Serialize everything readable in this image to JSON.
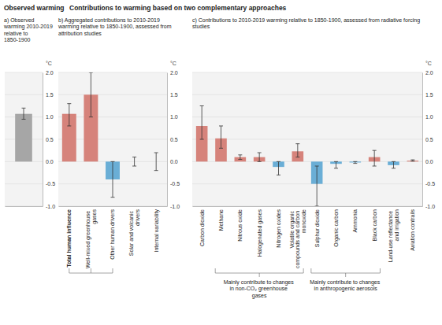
{
  "chart_data": [
    {
      "type": "bar",
      "title": "Observed warming",
      "subtitle": "a) Observed warming 2010-2019 relative to 1850-1900",
      "ylabel": "°C",
      "categories": [
        null
      ],
      "values": [
        1.07
      ],
      "error_low": [
        0.95
      ],
      "error_high": [
        1.2
      ],
      "colors": [
        "#a6a6a6"
      ],
      "ylim": [
        -1,
        2
      ],
      "yticks": [
        {
          "value": -1,
          "label": "-1.0"
        },
        {
          "value": -0.5,
          "label": "-0.5"
        },
        {
          "value": 0,
          "label": "0.0"
        },
        {
          "value": 0.5,
          "label": "0.5"
        },
        {
          "value": 1,
          "label": "1.0"
        },
        {
          "value": 1.5,
          "label": "1.5"
        },
        {
          "value": 2,
          "label": "2.0"
        }
      ],
      "grid": true
    },
    {
      "type": "bar",
      "title": "Contributions to warming based on two complementary approaches",
      "subtitle": "b) Aggregated contributions to 2010-2019 warming relative to 1850-1900, assessed from attribution studies",
      "ylabel": "°C",
      "categories": [
        "Total human influence",
        "Well-mixed greenhouse gases",
        "Other human drivers",
        "Solar and volcanic drivers",
        "Internal variability"
      ],
      "values": [
        1.07,
        1.5,
        -0.4,
        0.0,
        0.0
      ],
      "error_low": [
        0.8,
        1.0,
        -0.8,
        -0.1,
        -0.2
      ],
      "error_high": [
        1.3,
        2.0,
        0.0,
        0.1,
        0.2
      ],
      "colors": [
        "#d6837b",
        "#d6837b",
        "#6aaed6",
        "#d6837b",
        "#d6837b"
      ],
      "ylim": [
        -1,
        2
      ],
      "yticks": [
        {
          "value": -1,
          "label": "-1.0"
        },
        {
          "value": -0.5,
          "label": "-0.5"
        },
        {
          "value": 0,
          "label": "0.0"
        },
        {
          "value": 0.5,
          "label": "0.5"
        },
        {
          "value": 1,
          "label": "1.0"
        },
        {
          "value": 1.5,
          "label": "1.5"
        },
        {
          "value": 2,
          "label": "2.0"
        }
      ],
      "grid": true
    },
    {
      "type": "bar",
      "subtitle": "c) Contributions to 2010-2019 warming relative to 1850-1900, assessed from radiative forcing studies",
      "ylabel": "°C",
      "categories": [
        "Carbon dioxide",
        "Methane",
        "Nitrous oxide",
        "Halogenated gases",
        "Nitrogen oxides",
        "Volatile organic compounds and carbon monoxide",
        "Sulphur dioxide",
        "Organic carbon",
        "Ammonia",
        "Black carbon",
        "Land-use reflectance and irrigation",
        "Aviation contrails"
      ],
      "values": [
        0.8,
        0.52,
        0.1,
        0.1,
        -0.12,
        0.23,
        -0.5,
        -0.05,
        -0.02,
        0.1,
        -0.08,
        0.02
      ],
      "error_low": [
        0.5,
        0.3,
        0.05,
        0.0,
        -0.3,
        0.1,
        -1.0,
        -0.15,
        -0.04,
        -0.1,
        -0.15,
        0.01
      ],
      "error_high": [
        1.25,
        0.8,
        0.15,
        0.2,
        0.0,
        0.4,
        -0.1,
        0.0,
        0.0,
        0.25,
        0.0,
        0.04
      ],
      "colors": [
        "#d6837b",
        "#d6837b",
        "#d6837b",
        "#d6837b",
        "#6aaed6",
        "#d6837b",
        "#6aaed6",
        "#6aaed6",
        "#6aaed6",
        "#d6837b",
        "#6aaed6",
        "#d6837b"
      ],
      "ylim": [
        -1,
        2
      ],
      "yticks": [
        {
          "value": -1,
          "label": "-1.0"
        },
        {
          "value": -0.5,
          "label": "-0.5"
        },
        {
          "value": 0,
          "label": "0.0"
        },
        {
          "value": 0.5,
          "label": "0.5"
        },
        {
          "value": 1,
          "label": "1.0"
        },
        {
          "value": 1.5,
          "label": "1.5"
        },
        {
          "value": 2,
          "label": "2.0"
        }
      ],
      "grid": true,
      "annotations": [
        {
          "text": "Mainly contribute to changes in non-CO₂ greenhouse gases",
          "from": 1,
          "to": 5
        },
        {
          "text": "Mainly contribute to changes in anthropogenic aerosols",
          "from": 6,
          "to": 9
        }
      ]
    }
  ]
}
